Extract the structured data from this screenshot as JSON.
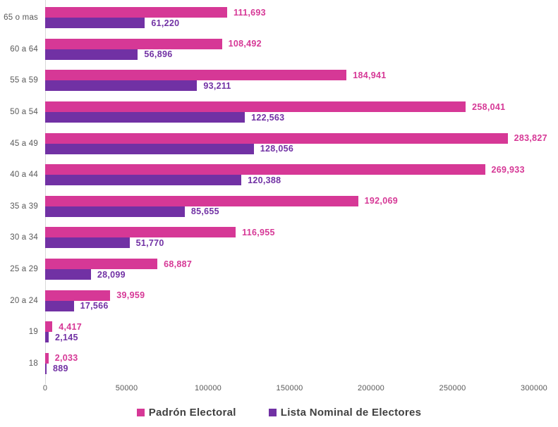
{
  "chart_data": {
    "type": "bar",
    "orientation": "horizontal",
    "title": "",
    "xlabel": "",
    "ylabel": "",
    "xlim": [
      0,
      300000
    ],
    "x_ticks": [
      0,
      50000,
      100000,
      150000,
      200000,
      250000,
      300000
    ],
    "x_tick_labels": [
      "0",
      "50000",
      "100000",
      "150000",
      "200000",
      "250000",
      "300000"
    ],
    "grid": false,
    "legend_position": "bottom",
    "categories": [
      "65 o mas",
      "60 a 64",
      "55 a 59",
      "50 a 54",
      "45 a 49",
      "40 a 44",
      "35 a 39",
      "30 a 34",
      "25 a 29",
      "20 a 24",
      "19",
      "18"
    ],
    "series": [
      {
        "name": "Padrón Electoral",
        "color": "#d63896",
        "values": [
          111693,
          108492,
          184941,
          258041,
          283827,
          269933,
          192069,
          116955,
          68887,
          39959,
          4417,
          2033
        ],
        "value_labels": [
          "111,693",
          "108,492",
          "184,941",
          "258,041",
          "283,827",
          "269,933",
          "192,069",
          "116,955",
          "68,887",
          "39,959",
          "4,417",
          "2,033"
        ]
      },
      {
        "name": "Lista Nominal de Electores",
        "color": "#7131a4",
        "values": [
          61220,
          56896,
          93211,
          122563,
          128056,
          120388,
          85655,
          51770,
          28099,
          17566,
          2145,
          889
        ],
        "value_labels": [
          "61,220",
          "56,896",
          "93,211",
          "122,563",
          "128,056",
          "120,388",
          "85,655",
          "51,770",
          "28,099",
          "17,566",
          "2,145",
          "889"
        ]
      }
    ]
  },
  "legend": {
    "items": [
      {
        "label": "Padrón Electoral",
        "color": "#d63896"
      },
      {
        "label": "Lista Nominal de Electores",
        "color": "#7131a4"
      }
    ]
  },
  "colors": {
    "padron": "#d63896",
    "lista_nominal": "#7131a4",
    "axis_line": "#d9d9d9",
    "tick_text": "#595959",
    "category_text": "#595959",
    "legend_text": "#404040",
    "background": "#ffffff"
  }
}
